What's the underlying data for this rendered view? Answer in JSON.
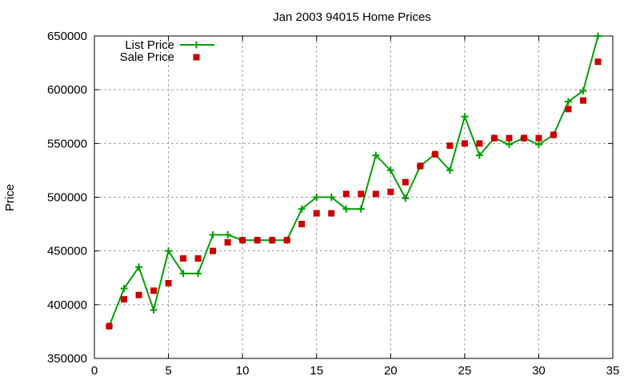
{
  "chart_data": {
    "type": "line",
    "title": "Jan 2003 94015 Home Prices",
    "xlabel": "",
    "ylabel": "Price",
    "xlim": [
      0,
      35
    ],
    "ylim": [
      350000,
      650000
    ],
    "xticks": [
      0,
      5,
      10,
      15,
      20,
      25,
      30,
      35
    ],
    "yticks": [
      350000,
      400000,
      450000,
      500000,
      550000,
      600000,
      650000
    ],
    "grid": true,
    "legend_position": "top-left",
    "x": [
      1,
      2,
      3,
      4,
      5,
      6,
      7,
      8,
      9,
      10,
      11,
      12,
      13,
      14,
      15,
      16,
      17,
      18,
      19,
      20,
      21,
      22,
      23,
      24,
      25,
      26,
      27,
      28,
      29,
      30,
      31,
      32,
      33,
      34
    ],
    "series": [
      {
        "name": "List Price",
        "style": "linespoints",
        "color": "#00a000",
        "values": [
          380000,
          415000,
          435000,
          395000,
          450000,
          429000,
          429000,
          465000,
          465000,
          460000,
          460000,
          460000,
          460000,
          489000,
          500000,
          500000,
          489000,
          489000,
          539000,
          525000,
          499000,
          529000,
          540000,
          525000,
          575000,
          539000,
          555000,
          549000,
          555000,
          549000,
          558000,
          589000,
          599000,
          650000
        ]
      },
      {
        "name": "Sale Price",
        "style": "points",
        "color": "#cc0000",
        "values": [
          380000,
          405000,
          409000,
          413000,
          420000,
          443000,
          443000,
          450000,
          458000,
          460000,
          460000,
          460000,
          460000,
          475000,
          485000,
          485000,
          503000,
          503000,
          503000,
          505000,
          514000,
          529000,
          540000,
          548000,
          550000,
          550000,
          555000,
          555000,
          555000,
          555000,
          558000,
          582000,
          590000,
          626000
        ]
      }
    ]
  }
}
